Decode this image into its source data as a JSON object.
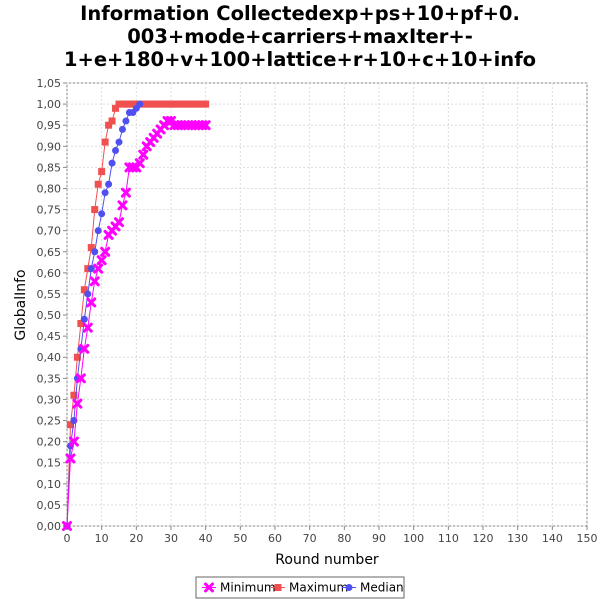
{
  "chart_data": {
    "type": "line",
    "title_lines": [
      "Information Collectedexp+ps+10+pf+0.",
      "003+mode+carriers+maxIter+-",
      "1+e+180+v+100+lattice+r+10+c+10+info"
    ],
    "xlabel": "Round number",
    "ylabel": "GlobalInfo",
    "xlim": [
      0,
      150
    ],
    "ylim": [
      0,
      1.05
    ],
    "x_ticks": [
      0,
      10,
      20,
      30,
      40,
      50,
      60,
      70,
      80,
      90,
      100,
      110,
      120,
      130,
      140,
      150
    ],
    "y_ticks": [
      "0,00",
      "0,05",
      "0,10",
      "0,15",
      "0,20",
      "0,25",
      "0,30",
      "0,35",
      "0,40",
      "0,45",
      "0,50",
      "0,55",
      "0,60",
      "0,65",
      "0,70",
      "0,75",
      "0,80",
      "0,85",
      "0,90",
      "0,95",
      "1,00",
      "1,05"
    ],
    "grid": true,
    "legend_position": "bottom",
    "series": [
      {
        "name": "Minimum",
        "color": "#ff00ff",
        "marker": "x",
        "x": [
          0,
          1,
          2,
          3,
          4,
          5,
          6,
          7,
          8,
          9,
          10,
          11,
          12,
          13,
          14,
          15,
          16,
          17,
          18,
          19,
          20,
          21,
          22,
          23,
          24,
          25,
          26,
          27,
          28,
          29,
          30,
          31,
          32,
          33,
          34,
          35,
          36,
          37,
          38,
          39,
          40
        ],
        "y": [
          0.0,
          0.16,
          0.2,
          0.29,
          0.35,
          0.42,
          0.47,
          0.53,
          0.58,
          0.61,
          0.63,
          0.65,
          0.69,
          0.7,
          0.71,
          0.72,
          0.76,
          0.79,
          0.85,
          0.85,
          0.85,
          0.86,
          0.88,
          0.9,
          0.91,
          0.92,
          0.93,
          0.94,
          0.95,
          0.96,
          0.96,
          0.95,
          0.95,
          0.95,
          0.95,
          0.95,
          0.95,
          0.95,
          0.95,
          0.95,
          0.95
        ]
      },
      {
        "name": "Maximum",
        "color": "#f05050",
        "marker": "square",
        "x": [
          0,
          1,
          2,
          3,
          4,
          5,
          6,
          7,
          8,
          9,
          10,
          11,
          12,
          13,
          14,
          15,
          16,
          17,
          18,
          19,
          20,
          21,
          22,
          23,
          24,
          25,
          26,
          27,
          28,
          29,
          30,
          31,
          32,
          33,
          34,
          35,
          36,
          37,
          38,
          39,
          40
        ],
        "y": [
          0.0,
          0.24,
          0.31,
          0.4,
          0.48,
          0.56,
          0.61,
          0.66,
          0.75,
          0.81,
          0.84,
          0.91,
          0.95,
          0.96,
          0.99,
          1.0,
          1.0,
          1.0,
          1.0,
          1.0,
          1.0,
          1.0,
          1.0,
          1.0,
          1.0,
          1.0,
          1.0,
          1.0,
          1.0,
          1.0,
          1.0,
          1.0,
          1.0,
          1.0,
          1.0,
          1.0,
          1.0,
          1.0,
          1.0,
          1.0,
          1.0
        ]
      },
      {
        "name": "Median",
        "color": "#5050f0",
        "marker": "circle",
        "x": [
          0,
          1,
          2,
          3,
          4,
          5,
          6,
          7,
          8,
          9,
          10,
          11,
          12,
          13,
          14,
          15,
          16,
          17,
          18,
          19,
          20,
          21
        ],
        "y": [
          0.0,
          0.19,
          0.25,
          0.35,
          0.42,
          0.49,
          0.55,
          0.61,
          0.65,
          0.7,
          0.74,
          0.79,
          0.81,
          0.86,
          0.89,
          0.91,
          0.94,
          0.96,
          0.98,
          0.98,
          0.99,
          1.0
        ]
      }
    ]
  }
}
